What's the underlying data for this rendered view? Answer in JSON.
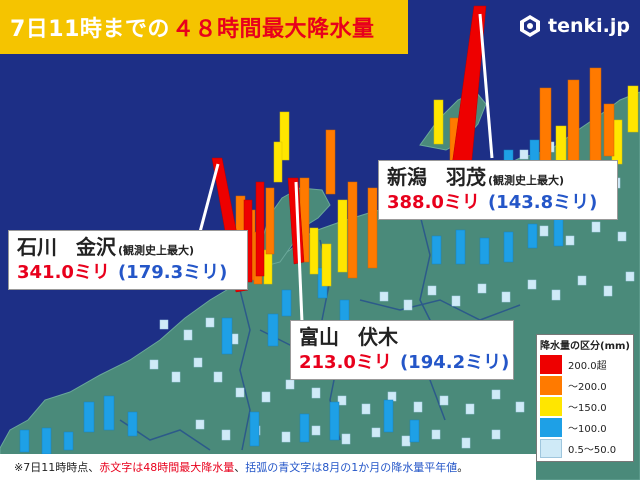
{
  "title": {
    "prefix": "7日11時までの",
    "highlight": "４８時間最大降水量"
  },
  "logo": {
    "text": "tenki.jp",
    "icon": "tenki-logo-icon"
  },
  "stations": [
    {
      "pref": "新潟",
      "name": "羽茂",
      "note": "(観測史上最大)",
      "value": "388.0ミリ",
      "normal": "(143.8ミリ)"
    },
    {
      "pref": "石川",
      "name": "金沢",
      "note": "(観測史上最大)",
      "value": "341.0ミリ",
      "normal": "(179.3ミリ)"
    },
    {
      "pref": "富山",
      "name": "伏木",
      "note": "",
      "value": "213.0ミリ",
      "normal": "(194.2ミリ)"
    }
  ],
  "legend": {
    "title": "降水量の区分(mm)",
    "items": [
      {
        "label": "200.0超",
        "color": "#ee0000"
      },
      {
        "label": "～200.0",
        "color": "#ff7a00"
      },
      {
        "label": "～150.0",
        "color": "#ffe600"
      },
      {
        "label": "～100.0",
        "color": "#1ea0e6"
      },
      {
        "label": "0.5～50.0",
        "color": "#cfeaf7"
      }
    ]
  },
  "footer": {
    "p1": "※7日11時時点、",
    "p2": "赤文字は48時間最大降水量",
    "p3": "、",
    "p4": "括弧の青文字は8月の1か月の降水量平年値",
    "p5": "。"
  }
}
